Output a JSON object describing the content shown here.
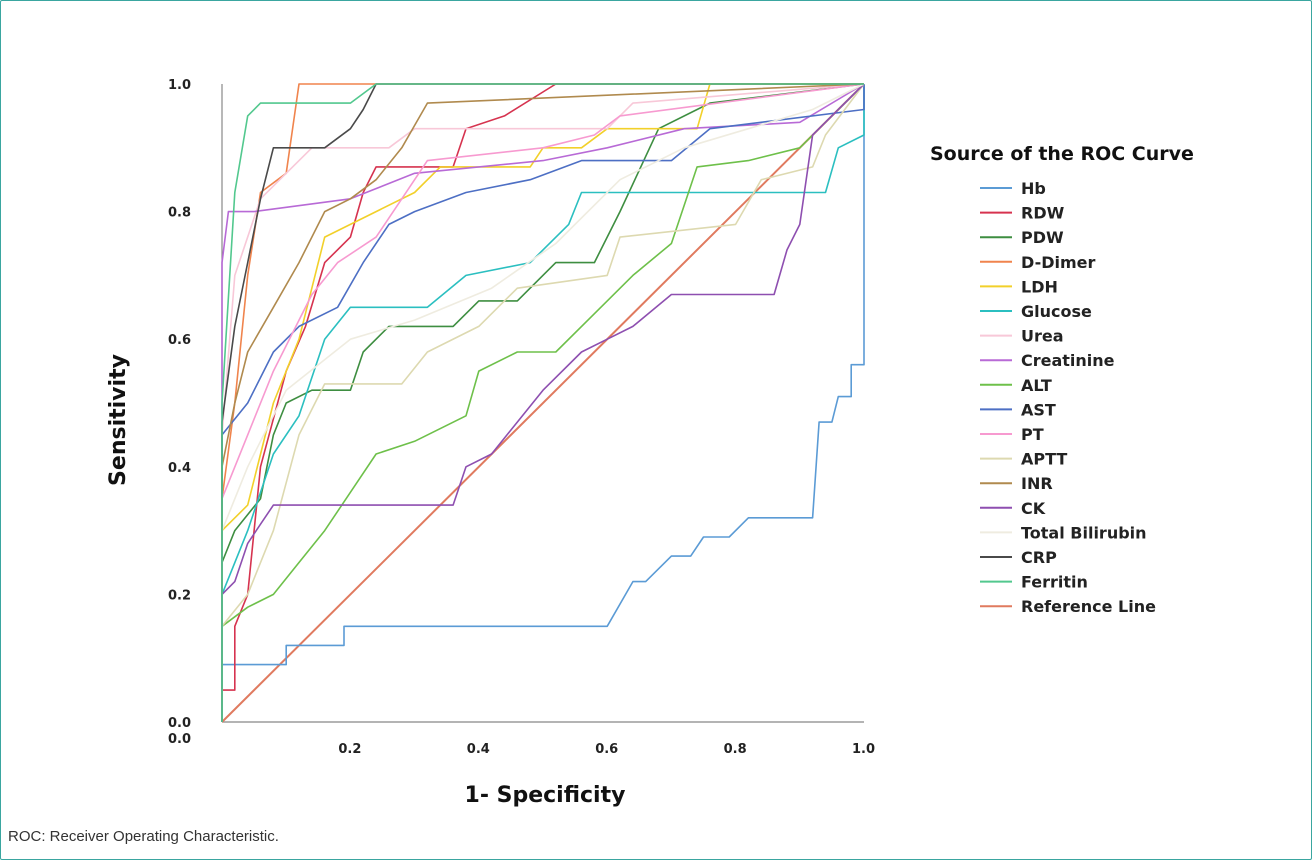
{
  "caption": "ROC: Receiver Operating Characteristic.",
  "chart_data": {
    "type": "line",
    "xlabel": "1- Specificity",
    "ylabel": "Sensitivity",
    "xlim": [
      0,
      1
    ],
    "ylim": [
      0,
      1
    ],
    "x_ticks": [
      {
        "value": 0.0,
        "label": "0.0"
      },
      {
        "value": 0.2,
        "label": "0.2"
      },
      {
        "value": 0.4,
        "label": "0.4"
      },
      {
        "value": 0.6,
        "label": "0.6"
      },
      {
        "value": 0.8,
        "label": "0.8"
      },
      {
        "value": 1.0,
        "label": "1.0"
      }
    ],
    "y_ticks": [
      {
        "value": 0.0,
        "label": "0.0"
      },
      {
        "value": 0.2,
        "label": "0.2"
      },
      {
        "value": 0.4,
        "label": "0.4"
      },
      {
        "value": 0.6,
        "label": "0.6"
      },
      {
        "value": 0.8,
        "label": "0.8"
      },
      {
        "value": 1.0,
        "label": "1.0"
      }
    ],
    "grid": false,
    "legend_title": "Source of the ROC Curve",
    "legend_position": "right",
    "series": [
      {
        "name": "Hb",
        "color": "#5b9bd5",
        "points": [
          [
            0,
            0
          ],
          [
            0,
            0.09
          ],
          [
            0.1,
            0.09
          ],
          [
            0.1,
            0.12
          ],
          [
            0.19,
            0.12
          ],
          [
            0.19,
            0.15
          ],
          [
            0.6,
            0.15
          ],
          [
            0.64,
            0.22
          ],
          [
            0.66,
            0.22
          ],
          [
            0.7,
            0.26
          ],
          [
            0.73,
            0.26
          ],
          [
            0.75,
            0.29
          ],
          [
            0.79,
            0.29
          ],
          [
            0.82,
            0.32
          ],
          [
            0.92,
            0.32
          ],
          [
            0.93,
            0.47
          ],
          [
            0.95,
            0.47
          ],
          [
            0.96,
            0.51
          ],
          [
            0.98,
            0.51
          ],
          [
            0.98,
            0.56
          ],
          [
            1.0,
            0.56
          ],
          [
            1.0,
            1.0
          ]
        ]
      },
      {
        "name": "RDW",
        "color": "#d6334f",
        "points": [
          [
            0,
            0
          ],
          [
            0,
            0.05
          ],
          [
            0.02,
            0.05
          ],
          [
            0.02,
            0.15
          ],
          [
            0.04,
            0.2
          ],
          [
            0.06,
            0.4
          ],
          [
            0.1,
            0.55
          ],
          [
            0.13,
            0.62
          ],
          [
            0.16,
            0.72
          ],
          [
            0.2,
            0.76
          ],
          [
            0.22,
            0.83
          ],
          [
            0.24,
            0.87
          ],
          [
            0.36,
            0.87
          ],
          [
            0.38,
            0.93
          ],
          [
            0.44,
            0.95
          ],
          [
            0.52,
            1.0
          ],
          [
            1.0,
            1.0
          ]
        ]
      },
      {
        "name": "PDW",
        "color": "#3e8e41",
        "points": [
          [
            0,
            0
          ],
          [
            0,
            0.25
          ],
          [
            0.02,
            0.3
          ],
          [
            0.06,
            0.35
          ],
          [
            0.08,
            0.45
          ],
          [
            0.1,
            0.5
          ],
          [
            0.14,
            0.52
          ],
          [
            0.2,
            0.52
          ],
          [
            0.22,
            0.58
          ],
          [
            0.26,
            0.62
          ],
          [
            0.36,
            0.62
          ],
          [
            0.4,
            0.66
          ],
          [
            0.46,
            0.66
          ],
          [
            0.52,
            0.72
          ],
          [
            0.58,
            0.72
          ],
          [
            0.62,
            0.8
          ],
          [
            0.68,
            0.93
          ],
          [
            0.76,
            0.97
          ],
          [
            1.0,
            1.0
          ]
        ]
      },
      {
        "name": "D-Dimer",
        "color": "#f0844d",
        "points": [
          [
            0,
            0
          ],
          [
            0,
            0.35
          ],
          [
            0.02,
            0.5
          ],
          [
            0.04,
            0.7
          ],
          [
            0.06,
            0.83
          ],
          [
            0.1,
            0.86
          ],
          [
            0.12,
            1.0
          ],
          [
            1.0,
            1.0
          ]
        ]
      },
      {
        "name": "LDH",
        "color": "#f2d02a",
        "points": [
          [
            0,
            0
          ],
          [
            0,
            0.3
          ],
          [
            0.04,
            0.34
          ],
          [
            0.08,
            0.5
          ],
          [
            0.12,
            0.6
          ],
          [
            0.16,
            0.76
          ],
          [
            0.22,
            0.79
          ],
          [
            0.3,
            0.83
          ],
          [
            0.34,
            0.87
          ],
          [
            0.48,
            0.87
          ],
          [
            0.5,
            0.9
          ],
          [
            0.56,
            0.9
          ],
          [
            0.6,
            0.93
          ],
          [
            0.74,
            0.93
          ],
          [
            0.76,
            1.0
          ],
          [
            1.0,
            1.0
          ]
        ]
      },
      {
        "name": "Glucose",
        "color": "#2bbfc0",
        "points": [
          [
            0,
            0
          ],
          [
            0,
            0.2
          ],
          [
            0.04,
            0.3
          ],
          [
            0.08,
            0.42
          ],
          [
            0.12,
            0.48
          ],
          [
            0.16,
            0.6
          ],
          [
            0.2,
            0.65
          ],
          [
            0.32,
            0.65
          ],
          [
            0.38,
            0.7
          ],
          [
            0.48,
            0.72
          ],
          [
            0.54,
            0.78
          ],
          [
            0.56,
            0.83
          ],
          [
            0.94,
            0.83
          ],
          [
            0.96,
            0.9
          ],
          [
            1.0,
            0.92
          ],
          [
            1.0,
            1.0
          ]
        ]
      },
      {
        "name": "Urea",
        "color": "#f8c8d8",
        "points": [
          [
            0,
            0
          ],
          [
            0,
            0.45
          ],
          [
            0.02,
            0.7
          ],
          [
            0.06,
            0.82
          ],
          [
            0.1,
            0.86
          ],
          [
            0.14,
            0.9
          ],
          [
            0.26,
            0.9
          ],
          [
            0.3,
            0.93
          ],
          [
            0.6,
            0.93
          ],
          [
            0.64,
            0.97
          ],
          [
            1.0,
            1.0
          ]
        ]
      },
      {
        "name": "Creatinine",
        "color": "#b86ad6",
        "points": [
          [
            0,
            0
          ],
          [
            0,
            0.72
          ],
          [
            0.01,
            0.8
          ],
          [
            0.05,
            0.8
          ],
          [
            0.2,
            0.82
          ],
          [
            0.3,
            0.86
          ],
          [
            0.5,
            0.88
          ],
          [
            0.6,
            0.9
          ],
          [
            0.72,
            0.93
          ],
          [
            0.9,
            0.94
          ],
          [
            1.0,
            1.0
          ]
        ]
      },
      {
        "name": "ALT",
        "color": "#6ec04a",
        "points": [
          [
            0,
            0
          ],
          [
            0,
            0.15
          ],
          [
            0.04,
            0.18
          ],
          [
            0.08,
            0.2
          ],
          [
            0.12,
            0.25
          ],
          [
            0.16,
            0.3
          ],
          [
            0.2,
            0.36
          ],
          [
            0.24,
            0.42
          ],
          [
            0.3,
            0.44
          ],
          [
            0.38,
            0.48
          ],
          [
            0.4,
            0.55
          ],
          [
            0.46,
            0.58
          ],
          [
            0.52,
            0.58
          ],
          [
            0.58,
            0.64
          ],
          [
            0.64,
            0.7
          ],
          [
            0.7,
            0.75
          ],
          [
            0.74,
            0.87
          ],
          [
            0.82,
            0.88
          ],
          [
            0.9,
            0.9
          ],
          [
            1.0,
            1.0
          ]
        ]
      },
      {
        "name": "AST",
        "color": "#4d6fc4",
        "points": [
          [
            0,
            0
          ],
          [
            0,
            0.45
          ],
          [
            0.04,
            0.5
          ],
          [
            0.08,
            0.58
          ],
          [
            0.12,
            0.62
          ],
          [
            0.18,
            0.65
          ],
          [
            0.22,
            0.72
          ],
          [
            0.26,
            0.78
          ],
          [
            0.3,
            0.8
          ],
          [
            0.38,
            0.83
          ],
          [
            0.48,
            0.85
          ],
          [
            0.56,
            0.88
          ],
          [
            0.7,
            0.88
          ],
          [
            0.76,
            0.93
          ],
          [
            1.0,
            0.96
          ],
          [
            1.0,
            1.0
          ]
        ]
      },
      {
        "name": "PT",
        "color": "#f79ad0",
        "points": [
          [
            0,
            0
          ],
          [
            0,
            0.35
          ],
          [
            0.04,
            0.45
          ],
          [
            0.08,
            0.55
          ],
          [
            0.14,
            0.67
          ],
          [
            0.18,
            0.72
          ],
          [
            0.24,
            0.76
          ],
          [
            0.28,
            0.82
          ],
          [
            0.32,
            0.88
          ],
          [
            0.5,
            0.9
          ],
          [
            0.58,
            0.92
          ],
          [
            0.62,
            0.95
          ],
          [
            1.0,
            1.0
          ]
        ]
      },
      {
        "name": "APTT",
        "color": "#ddd9b0",
        "points": [
          [
            0,
            0
          ],
          [
            0,
            0.15
          ],
          [
            0.04,
            0.2
          ],
          [
            0.08,
            0.3
          ],
          [
            0.12,
            0.45
          ],
          [
            0.16,
            0.53
          ],
          [
            0.28,
            0.53
          ],
          [
            0.32,
            0.58
          ],
          [
            0.4,
            0.62
          ],
          [
            0.46,
            0.68
          ],
          [
            0.6,
            0.7
          ],
          [
            0.62,
            0.76
          ],
          [
            0.8,
            0.78
          ],
          [
            0.84,
            0.85
          ],
          [
            0.92,
            0.87
          ],
          [
            0.94,
            0.92
          ],
          [
            1.0,
            1.0
          ]
        ]
      },
      {
        "name": "INR",
        "color": "#b08a4e",
        "points": [
          [
            0,
            0
          ],
          [
            0,
            0.4
          ],
          [
            0.02,
            0.5
          ],
          [
            0.04,
            0.58
          ],
          [
            0.08,
            0.65
          ],
          [
            0.12,
            0.72
          ],
          [
            0.16,
            0.8
          ],
          [
            0.2,
            0.82
          ],
          [
            0.24,
            0.85
          ],
          [
            0.28,
            0.9
          ],
          [
            0.32,
            0.97
          ],
          [
            1.0,
            1.0
          ]
        ]
      },
      {
        "name": "CK",
        "color": "#8e4fb0",
        "points": [
          [
            0,
            0
          ],
          [
            0,
            0.2
          ],
          [
            0.02,
            0.22
          ],
          [
            0.04,
            0.28
          ],
          [
            0.06,
            0.31
          ],
          [
            0.08,
            0.34
          ],
          [
            0.36,
            0.34
          ],
          [
            0.38,
            0.4
          ],
          [
            0.42,
            0.42
          ],
          [
            0.46,
            0.47
          ],
          [
            0.5,
            0.52
          ],
          [
            0.56,
            0.58
          ],
          [
            0.6,
            0.6
          ],
          [
            0.64,
            0.62
          ],
          [
            0.7,
            0.67
          ],
          [
            0.86,
            0.67
          ],
          [
            0.88,
            0.74
          ],
          [
            0.9,
            0.78
          ],
          [
            0.92,
            0.92
          ],
          [
            1.0,
            1.0
          ]
        ]
      },
      {
        "name": "Total Bilirubin",
        "color": "#efece0",
        "points": [
          [
            0,
            0
          ],
          [
            0,
            0.3
          ],
          [
            0.04,
            0.4
          ],
          [
            0.1,
            0.52
          ],
          [
            0.2,
            0.6
          ],
          [
            0.3,
            0.63
          ],
          [
            0.42,
            0.68
          ],
          [
            0.52,
            0.75
          ],
          [
            0.62,
            0.85
          ],
          [
            0.72,
            0.9
          ],
          [
            0.82,
            0.93
          ],
          [
            0.92,
            0.96
          ],
          [
            1.0,
            1.0
          ]
        ]
      },
      {
        "name": "CRP",
        "color": "#4a4a4a",
        "points": [
          [
            0,
            0
          ],
          [
            0,
            0.47
          ],
          [
            0.02,
            0.62
          ],
          [
            0.04,
            0.72
          ],
          [
            0.06,
            0.82
          ],
          [
            0.08,
            0.9
          ],
          [
            0.16,
            0.9
          ],
          [
            0.2,
            0.93
          ],
          [
            0.22,
            0.96
          ],
          [
            0.24,
            1.0
          ],
          [
            1.0,
            1.0
          ]
        ]
      },
      {
        "name": "Ferritin",
        "color": "#52c88e",
        "points": [
          [
            0,
            0
          ],
          [
            0,
            0.5
          ],
          [
            0.02,
            0.83
          ],
          [
            0.04,
            0.95
          ],
          [
            0.06,
            0.97
          ],
          [
            0.2,
            0.97
          ],
          [
            0.24,
            1.0
          ],
          [
            1.0,
            1.0
          ]
        ]
      },
      {
        "name": "Reference Line",
        "color": "#e07a5f",
        "points": [
          [
            0,
            0
          ],
          [
            1.0,
            1.0
          ]
        ]
      }
    ]
  }
}
